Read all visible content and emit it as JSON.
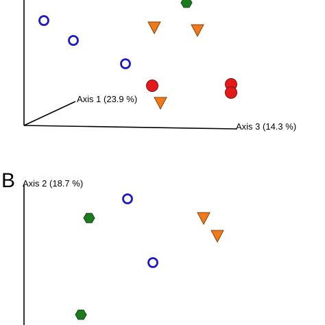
{
  "chart_data": [
    {
      "type": "scatter",
      "panel": "",
      "axes": {
        "axis1_label": "Axis 1 (23.9 %)",
        "axis3_label": "Axis 3 (14.3 %)"
      },
      "series": [
        {
          "marker": "open-circle",
          "color": "#1a1acc",
          "points": [
            {
              "id": "p1"
            },
            {
              "id": "p2"
            },
            {
              "id": "p3"
            }
          ]
        },
        {
          "marker": "triangle-down",
          "color": "#f07a1a",
          "points": [
            {
              "id": "p4"
            },
            {
              "id": "p5"
            },
            {
              "id": "p6"
            }
          ]
        },
        {
          "marker": "filled-circle",
          "color": "#e41a1a",
          "points": [
            {
              "id": "p7"
            },
            {
              "id": "p8"
            },
            {
              "id": "p9"
            }
          ]
        },
        {
          "marker": "hexagon",
          "color": "#1e7a1e",
          "points": [
            {
              "id": "p10"
            }
          ]
        }
      ]
    },
    {
      "type": "scatter",
      "panel": "B",
      "axes": {
        "axis2_label": "Axis 2 (18.7 %)"
      },
      "series": [
        {
          "marker": "open-circle",
          "color": "#1a1acc",
          "points": [
            {
              "id": "q1"
            },
            {
              "id": "q2"
            }
          ]
        },
        {
          "marker": "triangle-down",
          "color": "#f07a1a",
          "points": [
            {
              "id": "q3"
            },
            {
              "id": "q4"
            }
          ]
        },
        {
          "marker": "hexagon",
          "color": "#1e7a1e",
          "points": [
            {
              "id": "q5"
            },
            {
              "id": "q6"
            }
          ]
        }
      ]
    }
  ]
}
